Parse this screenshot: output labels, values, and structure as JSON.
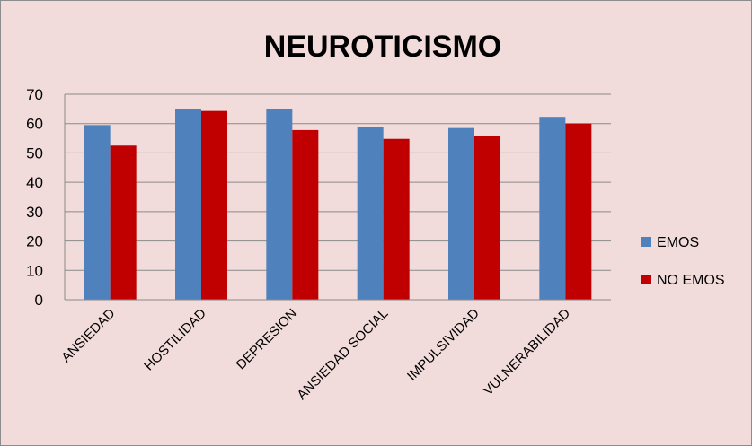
{
  "chart_data": {
    "type": "bar",
    "title": "NEUROTICISMO",
    "xlabel": "",
    "ylabel": "",
    "categories": [
      "ANSIEDAD",
      "HOSTILIDAD",
      "DEPRESION",
      "ANSIEDAD SOCIAL",
      "IMPULSIVIDAD",
      "VULNERABILIDAD"
    ],
    "series": [
      {
        "name": "EMOS",
        "color": "#4f81bd",
        "values": [
          59.5,
          64.8,
          65.0,
          59.0,
          58.5,
          62.3
        ]
      },
      {
        "name": "NO EMOS",
        "color": "#c00000",
        "values": [
          52.5,
          64.3,
          57.8,
          54.8,
          55.8,
          60.0
        ]
      }
    ],
    "ylim": [
      0,
      70
    ],
    "yticks": [
      0,
      10,
      20,
      30,
      40,
      50,
      60,
      70
    ],
    "grid": true,
    "legend_position": "right"
  }
}
